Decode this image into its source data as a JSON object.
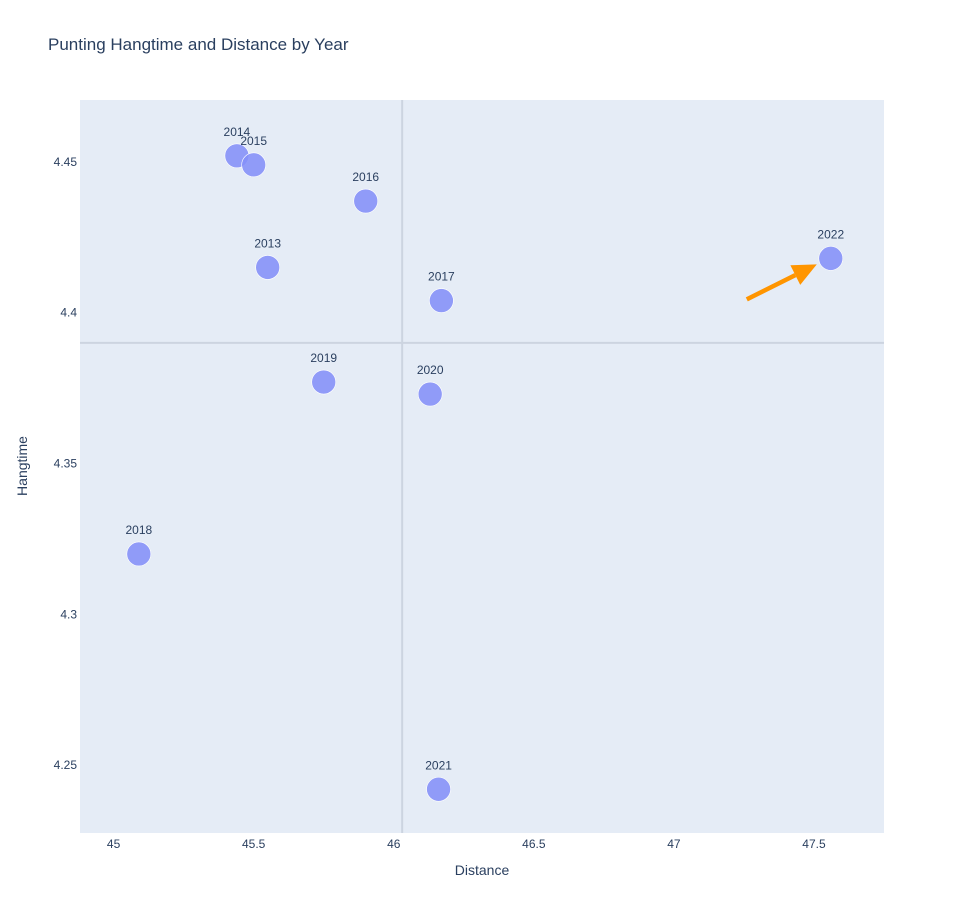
{
  "chart_data": {
    "type": "scatter",
    "title": "Punting Hangtime and Distance by Year",
    "xlabel": "Distance",
    "ylabel": "Hangtime",
    "xlim": [
      44.88,
      47.75
    ],
    "ylim": [
      4.2275,
      4.4705
    ],
    "xticks": [
      45,
      45.5,
      46,
      46.5,
      47,
      47.5
    ],
    "yticks": [
      4.25,
      4.3,
      4.35,
      4.4,
      4.45
    ],
    "xtick_labels": [
      "45",
      "45.5",
      "46",
      "46.5",
      "47",
      "47.5"
    ],
    "ytick_labels": [
      "4.25",
      "4.3",
      "4.35",
      "4.4",
      "4.45"
    ],
    "grid": false,
    "reference_lines": {
      "x": 46.03,
      "y": 4.39
    },
    "points": [
      {
        "year": "2013",
        "x": 45.55,
        "y": 4.415
      },
      {
        "year": "2014",
        "x": 45.44,
        "y": 4.452
      },
      {
        "year": "2015",
        "x": 45.5,
        "y": 4.449
      },
      {
        "year": "2016",
        "x": 45.9,
        "y": 4.437
      },
      {
        "year": "2017",
        "x": 46.17,
        "y": 4.404
      },
      {
        "year": "2018",
        "x": 45.09,
        "y": 4.32
      },
      {
        "year": "2019",
        "x": 45.75,
        "y": 4.377
      },
      {
        "year": "2020",
        "x": 46.13,
        "y": 4.373
      },
      {
        "year": "2021",
        "x": 46.16,
        "y": 4.242
      },
      {
        "year": "2022",
        "x": 47.56,
        "y": 4.418
      }
    ],
    "annotation": {
      "type": "arrow",
      "target_year": "2022"
    },
    "colors": {
      "marker": "#8490f8",
      "plot_bg": "#e5ecf6",
      "reference_line": "#ccd4e0",
      "arrow": "#ff9500",
      "text": "#2a3f5f"
    }
  }
}
